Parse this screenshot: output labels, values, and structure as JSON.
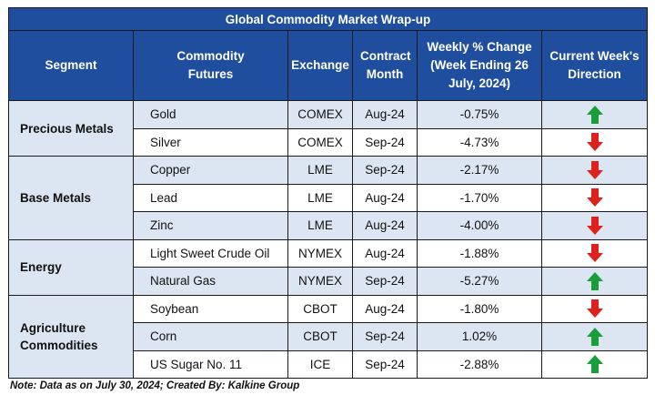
{
  "title": "Global Commodity Market Wrap-up",
  "headers": {
    "segment": "Segment",
    "commodity": "Commodity Futures",
    "exchange": "Exchange",
    "contract": "Contract Month",
    "weekly": "Weekly % Change (Week Ending 26 July, 2024)",
    "direction": "Current Week's Direction"
  },
  "colors": {
    "header_bg": "#1f4e9e",
    "alt_row": "#dce6f2",
    "up": "#1a9e3a",
    "down": "#e0201b"
  },
  "segments": [
    {
      "name": "Precious Metals",
      "rows": [
        {
          "commodity": "Gold",
          "exchange": "COMEX",
          "month": "Aug-24",
          "change": "-0.75%",
          "direction": "up",
          "icon": "arrow-up-icon"
        },
        {
          "commodity": "Silver",
          "exchange": "COMEX",
          "month": "Sep-24",
          "change": "-4.73%",
          "direction": "down",
          "icon": "arrow-down-icon"
        }
      ]
    },
    {
      "name": "Base Metals",
      "rows": [
        {
          "commodity": "Copper",
          "exchange": "LME",
          "month": "Sep-24",
          "change": "-2.17%",
          "direction": "down",
          "icon": "arrow-down-icon"
        },
        {
          "commodity": "Lead",
          "exchange": "LME",
          "month": "Aug-24",
          "change": "-1.70%",
          "direction": "down",
          "icon": "arrow-down-icon"
        },
        {
          "commodity": "Zinc",
          "exchange": "LME",
          "month": "Aug-24",
          "change": "-4.00%",
          "direction": "down",
          "icon": "arrow-down-icon"
        }
      ]
    },
    {
      "name": "Energy",
      "rows": [
        {
          "commodity": "Light Sweet Crude Oil",
          "exchange": "NYMEX",
          "month": "Aug-24",
          "change": "-1.88%",
          "direction": "down",
          "icon": "arrow-down-icon"
        },
        {
          "commodity": "Natural Gas",
          "exchange": "NYMEX",
          "month": "Sep-24",
          "change": "-5.27%",
          "direction": "up",
          "icon": "arrow-up-icon"
        }
      ]
    },
    {
      "name": "Agriculture Commodities",
      "rows": [
        {
          "commodity": "Soybean",
          "exchange": "CBOT",
          "month": "Aug-24",
          "change": "-1.80%",
          "direction": "down",
          "icon": "arrow-down-icon"
        },
        {
          "commodity": "Corn",
          "exchange": "CBOT",
          "month": "Sep-24",
          "change": "1.02%",
          "direction": "up",
          "icon": "arrow-up-icon"
        },
        {
          "commodity": "US Sugar No. 11",
          "exchange": "ICE",
          "month": "Sep-24",
          "change": "-2.88%",
          "direction": "up",
          "icon": "arrow-up-icon"
        }
      ]
    }
  ],
  "note": "Note: Data as on July 30, 2024; Created By: Kalkine Group"
}
